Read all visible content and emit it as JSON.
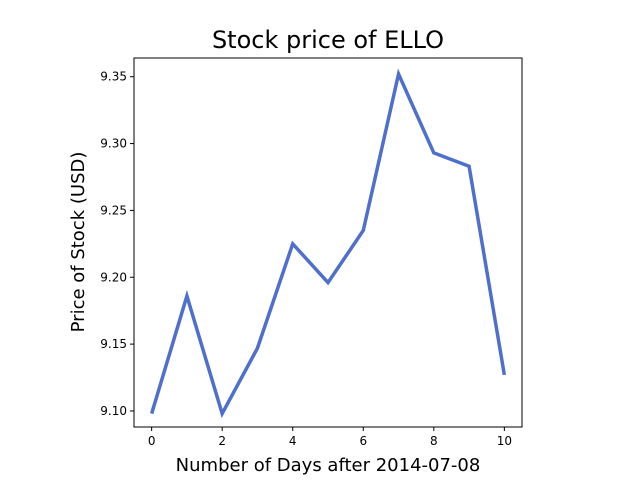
{
  "chart_data": {
    "type": "line",
    "title": "Stock price of ELLO",
    "xlabel": "Number of Days after 2014-07-08",
    "ylabel": "Price of Stock (USD)",
    "x": [
      0,
      1,
      2,
      3,
      4,
      5,
      6,
      7,
      8,
      9,
      10
    ],
    "series": [
      {
        "values": [
          9.098,
          9.186,
          9.098,
          9.147,
          9.225,
          9.196,
          9.235,
          9.352,
          9.293,
          9.283,
          9.127
        ],
        "color": "#4f6fcc"
      }
    ],
    "xlim": [
      -0.5,
      10.5
    ],
    "ylim": [
      9.088,
      9.364
    ],
    "xticks": [
      0,
      2,
      4,
      6,
      8,
      10
    ],
    "xtick_labels": [
      "0",
      "2",
      "4",
      "6",
      "8",
      "10"
    ],
    "yticks": [
      9.1,
      9.15,
      9.2,
      9.25,
      9.3,
      9.35
    ],
    "ytick_labels": [
      "9.10",
      "9.15",
      "9.20",
      "9.25",
      "9.30",
      "9.35"
    ],
    "grid": false,
    "legend": false
  }
}
